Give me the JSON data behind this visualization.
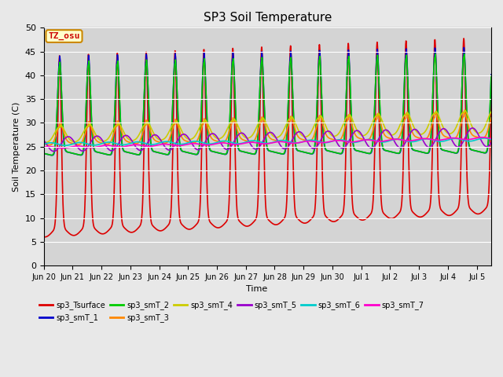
{
  "title": "SP3 Soil Temperature",
  "ylabel": "Soil Temperature (C)",
  "xlabel": "Time",
  "ylim": [
    0,
    50
  ],
  "yticks": [
    0,
    5,
    10,
    15,
    20,
    25,
    30,
    35,
    40,
    45,
    50
  ],
  "background_color": "#e8e8e8",
  "plot_bg_color": "#d4d4d4",
  "annotation_text": "TZ_osu",
  "annotation_color": "#cc0000",
  "annotation_bg": "#ffffcc",
  "annotation_border": "#cc8800",
  "series_order": [
    "sp3_Tsurface",
    "sp3_smT_1",
    "sp3_smT_2",
    "sp3_smT_3",
    "sp3_smT_4",
    "sp3_smT_5",
    "sp3_smT_6",
    "sp3_smT_7"
  ],
  "series_colors": {
    "sp3_Tsurface": "#dd0000",
    "sp3_smT_1": "#0000cc",
    "sp3_smT_2": "#00cc00",
    "sp3_smT_3": "#ff8800",
    "sp3_smT_4": "#cccc00",
    "sp3_smT_5": "#9900cc",
    "sp3_smT_6": "#00cccc",
    "sp3_smT_7": "#ff00cc"
  },
  "x_tick_labels": [
    "Jun 20",
    "Jun 21",
    "Jun 22",
    "Jun 23",
    "Jun 24",
    "Jun 25",
    "Jun 26",
    "Jun 27",
    "Jun 28",
    "Jun 29",
    "Jun 30",
    "Jul 1",
    "Jul 2",
    "Jul 3",
    "Jul 4",
    "Jul 5"
  ],
  "n_days": 15.5,
  "lw": 1.2
}
